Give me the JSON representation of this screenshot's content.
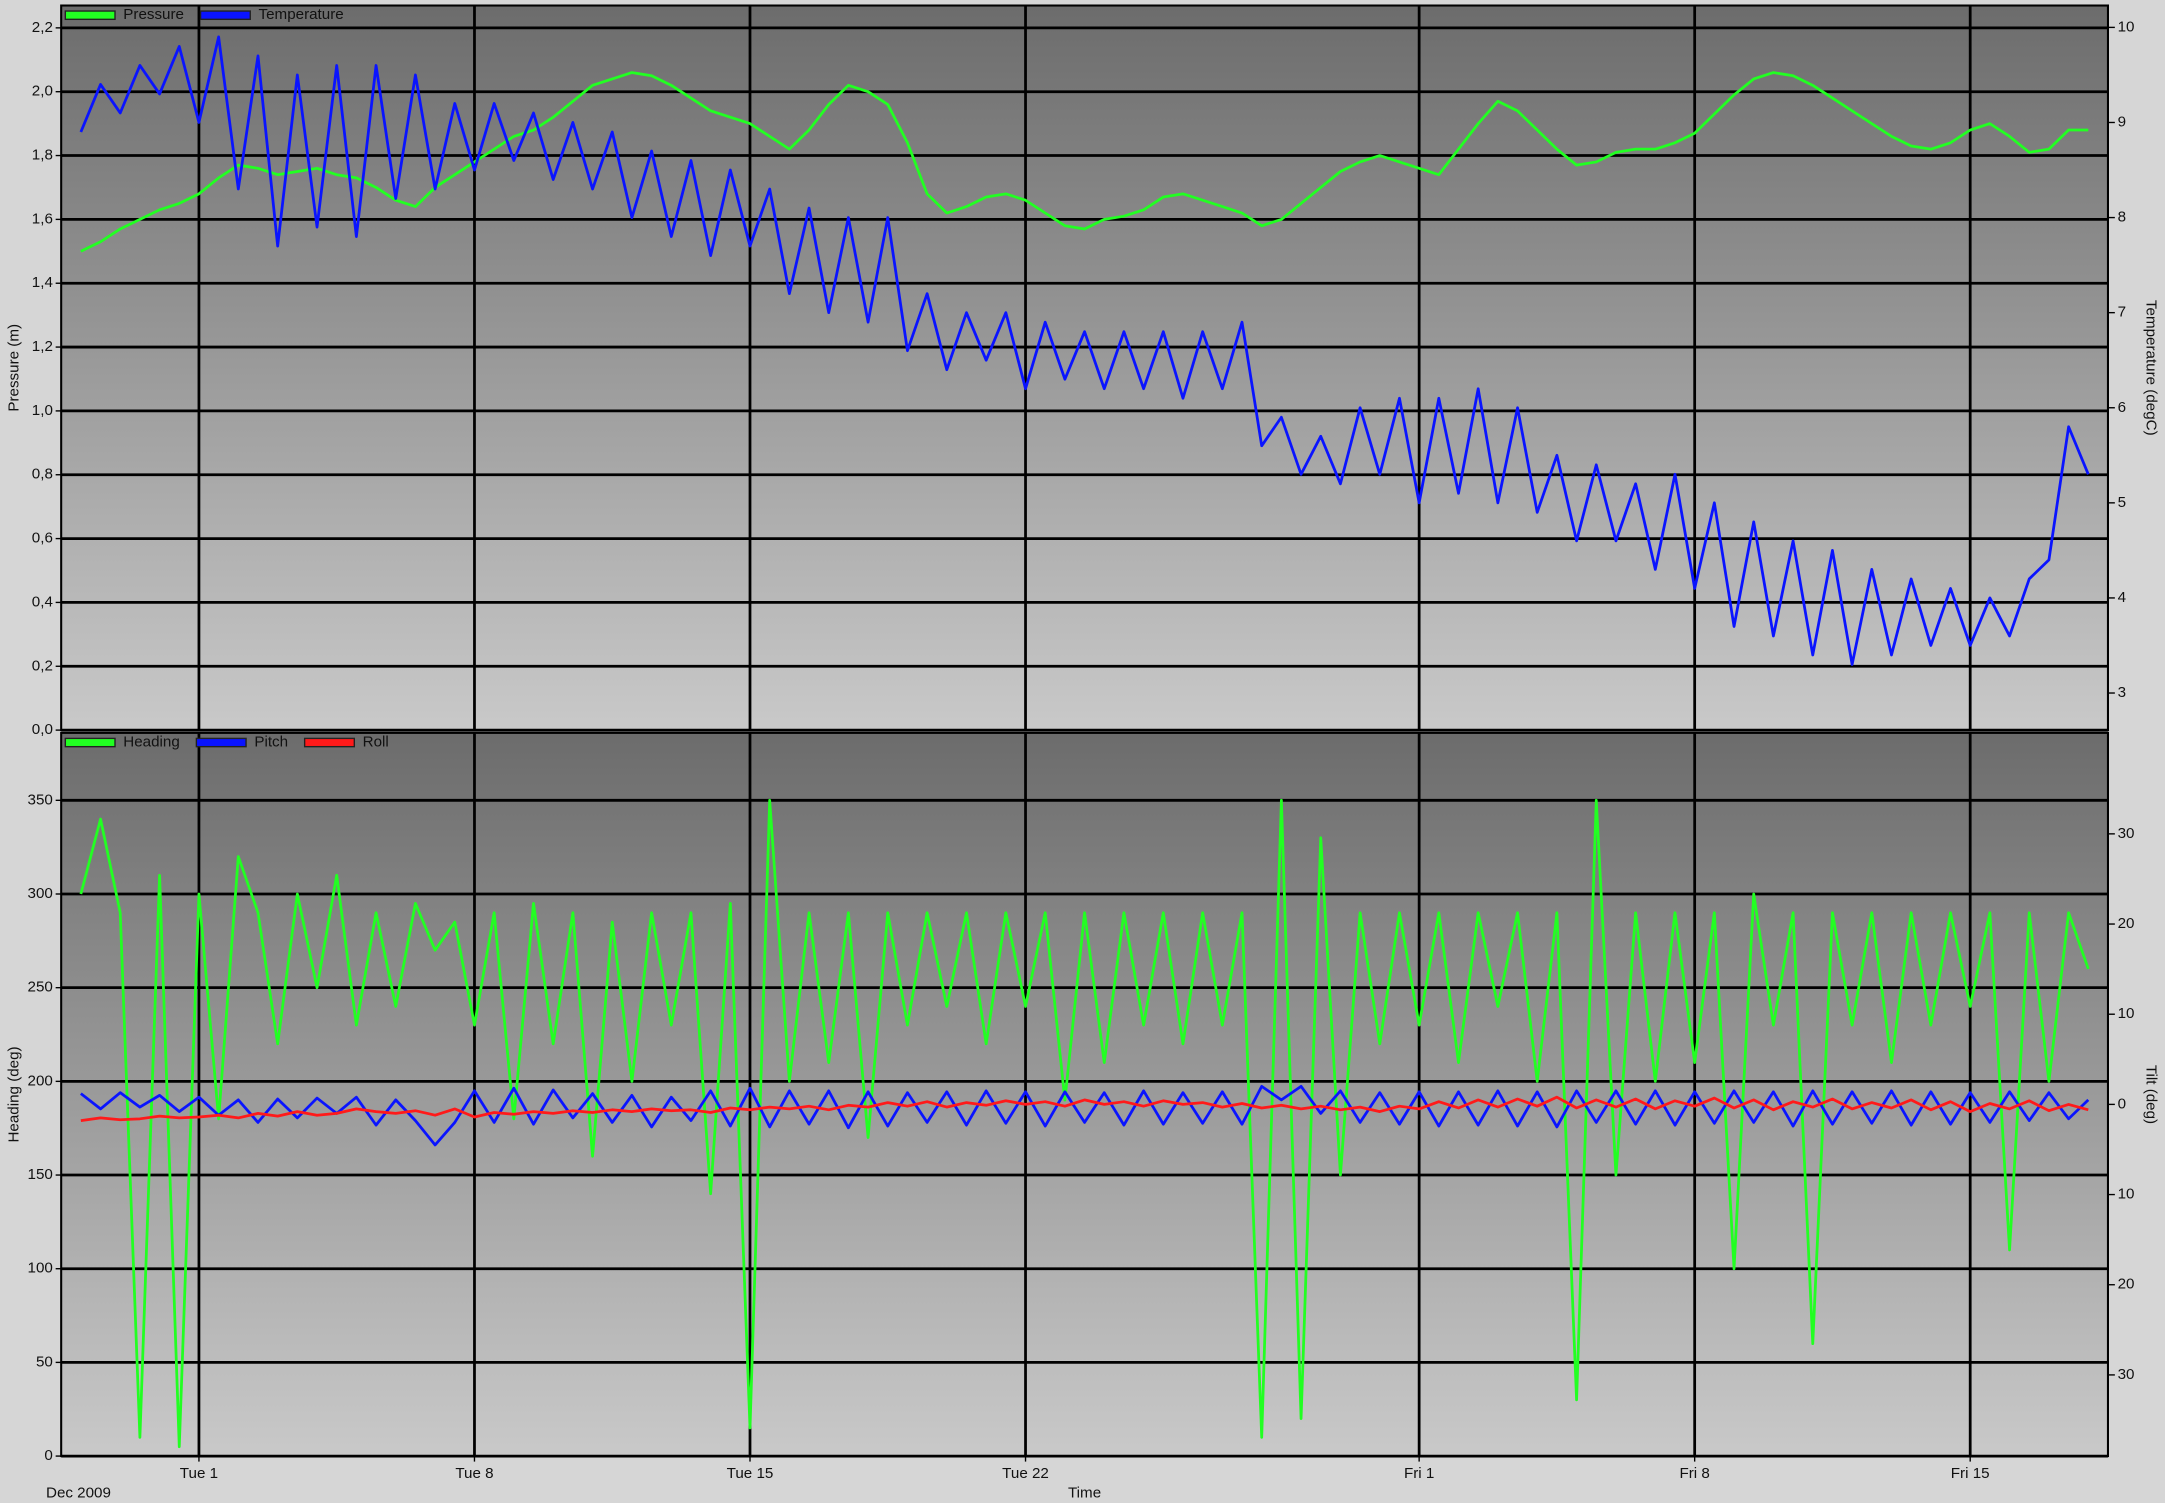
{
  "chart_data": [
    {
      "type": "line",
      "ylabel": "Pressure (m)",
      "y2label": "Temperature (degC)",
      "legend": "upper left",
      "grid": true,
      "xlim": [
        "2009-11-27T12:00",
        "2010-01-18T12:00"
      ],
      "ylim": [
        0,
        2.27
      ],
      "yticks": [
        {
          "value": 0,
          "label": "0,0"
        },
        {
          "value": 0.2,
          "label": "0,2"
        },
        {
          "value": 0.4,
          "label": "0,4"
        },
        {
          "value": 0.6,
          "label": "0,6"
        },
        {
          "value": 0.8,
          "label": "0,8"
        },
        {
          "value": 1.0,
          "label": "1,0"
        },
        {
          "value": 1.2,
          "label": "1,2"
        },
        {
          "value": 1.4,
          "label": "1,4"
        },
        {
          "value": 1.6,
          "label": "1,6"
        },
        {
          "value": 1.8,
          "label": "1,8"
        },
        {
          "value": 2.0,
          "label": "2,0"
        },
        {
          "value": 2.2,
          "label": "2,2"
        }
      ],
      "y2lim": [
        2.61,
        10.23
      ],
      "y2ticks": [
        3,
        4,
        5,
        6,
        7,
        8,
        9,
        10
      ],
      "x": [
        "2009-11-28T00:00",
        "2009-11-28T12:00",
        "2009-11-29T00:00",
        "2009-11-29T12:00",
        "2009-11-30T00:00",
        "2009-11-30T12:00",
        "2009-12-01T00:00",
        "2009-12-01T12:00",
        "2009-12-02T00:00",
        "2009-12-02T12:00",
        "2009-12-03T00:00",
        "2009-12-03T12:00",
        "2009-12-04T00:00",
        "2009-12-04T12:00",
        "2009-12-05T00:00",
        "2009-12-05T12:00",
        "2009-12-06T00:00",
        "2009-12-06T12:00",
        "2009-12-07T00:00",
        "2009-12-07T12:00",
        "2009-12-08T00:00",
        "2009-12-08T12:00",
        "2009-12-09T00:00",
        "2009-12-09T12:00",
        "2009-12-10T00:00",
        "2009-12-10T12:00",
        "2009-12-11T00:00",
        "2009-12-11T12:00",
        "2009-12-12T00:00",
        "2009-12-12T12:00",
        "2009-12-13T00:00",
        "2009-12-13T12:00",
        "2009-12-14T00:00",
        "2009-12-14T12:00",
        "2009-12-15T00:00",
        "2009-12-15T12:00",
        "2009-12-16T00:00",
        "2009-12-16T12:00",
        "2009-12-17T00:00",
        "2009-12-17T12:00",
        "2009-12-18T00:00",
        "2009-12-18T12:00",
        "2009-12-19T00:00",
        "2009-12-19T12:00",
        "2009-12-20T00:00",
        "2009-12-20T12:00",
        "2009-12-21T00:00",
        "2009-12-21T12:00",
        "2009-12-22T00:00",
        "2009-12-22T12:00",
        "2009-12-23T00:00",
        "2009-12-23T12:00",
        "2009-12-24T00:00",
        "2009-12-24T12:00",
        "2009-12-25T00:00",
        "2009-12-25T12:00",
        "2009-12-26T00:00",
        "2009-12-26T12:00",
        "2009-12-27T00:00",
        "2009-12-27T12:00",
        "2009-12-28T00:00",
        "2009-12-28T12:00",
        "2009-12-29T00:00",
        "2009-12-29T12:00",
        "2009-12-30T00:00",
        "2009-12-30T12:00",
        "2009-12-31T00:00",
        "2009-12-31T12:00",
        "2010-01-01T00:00",
        "2010-01-01T12:00",
        "2010-01-02T00:00",
        "2010-01-02T12:00",
        "2010-01-03T00:00",
        "2010-01-03T12:00",
        "2010-01-04T00:00",
        "2010-01-04T12:00",
        "2010-01-05T00:00",
        "2010-01-05T12:00",
        "2010-01-06T00:00",
        "2010-01-06T12:00",
        "2010-01-07T00:00",
        "2010-01-07T12:00",
        "2010-01-08T00:00",
        "2010-01-08T12:00",
        "2010-01-09T00:00",
        "2010-01-09T12:00",
        "2010-01-10T00:00",
        "2010-01-10T12:00",
        "2010-01-11T00:00",
        "2010-01-11T12:00",
        "2010-01-12T00:00",
        "2010-01-12T12:00",
        "2010-01-13T00:00",
        "2010-01-13T12:00",
        "2010-01-14T00:00",
        "2010-01-14T12:00",
        "2010-01-15T00:00",
        "2010-01-15T12:00",
        "2010-01-16T00:00",
        "2010-01-16T12:00",
        "2010-01-17T00:00",
        "2010-01-17T12:00",
        "2010-01-18T00:00"
      ],
      "series": [
        {
          "name": "Pressure",
          "color": "#22ff22",
          "axis": "y",
          "values": [
            1.5,
            1.53,
            1.57,
            1.6,
            1.63,
            1.65,
            1.68,
            1.73,
            1.77,
            1.76,
            1.74,
            1.75,
            1.76,
            1.74,
            1.73,
            1.7,
            1.66,
            1.64,
            1.7,
            1.74,
            1.78,
            1.82,
            1.86,
            1.88,
            1.92,
            1.97,
            2.02,
            2.04,
            2.06,
            2.05,
            2.02,
            1.98,
            1.94,
            1.92,
            1.9,
            1.86,
            1.82,
            1.88,
            1.96,
            2.02,
            2.0,
            1.96,
            1.84,
            1.68,
            1.62,
            1.64,
            1.67,
            1.68,
            1.66,
            1.62,
            1.58,
            1.57,
            1.6,
            1.61,
            1.63,
            1.67,
            1.68,
            1.66,
            1.64,
            1.62,
            1.58,
            1.6,
            1.65,
            1.7,
            1.75,
            1.78,
            1.8,
            1.78,
            1.76,
            1.74,
            1.82,
            1.9,
            1.97,
            1.94,
            1.88,
            1.82,
            1.77,
            1.78,
            1.81,
            1.82,
            1.82,
            1.84,
            1.87,
            1.93,
            1.99,
            2.04,
            2.06,
            2.05,
            2.02,
            1.98,
            1.94,
            1.9,
            1.86,
            1.83,
            1.82,
            1.84,
            1.88,
            1.9,
            1.86,
            1.81,
            1.82,
            1.88,
            1.88
          ]
        },
        {
          "name": "Temperature",
          "color": "#0a14ff",
          "axis": "y2",
          "values": [
            8.9,
            9.4,
            9.1,
            9.6,
            9.3,
            9.8,
            9.0,
            9.9,
            8.3,
            9.7,
            7.7,
            9.5,
            7.9,
            9.6,
            7.8,
            9.6,
            8.2,
            9.5,
            8.3,
            9.2,
            8.5,
            9.2,
            8.6,
            9.1,
            8.4,
            9.0,
            8.3,
            8.9,
            8.0,
            8.7,
            7.8,
            8.6,
            7.6,
            8.5,
            7.7,
            8.3,
            7.2,
            8.1,
            7.0,
            8.0,
            6.9,
            8.0,
            6.6,
            7.2,
            6.4,
            7.0,
            6.5,
            7.0,
            6.2,
            6.9,
            6.3,
            6.8,
            6.2,
            6.8,
            6.2,
            6.8,
            6.1,
            6.8,
            6.2,
            6.9,
            5.6,
            5.9,
            5.3,
            5.7,
            5.2,
            6.0,
            5.3,
            6.1,
            5.0,
            6.1,
            5.1,
            6.2,
            5.0,
            6.0,
            4.9,
            5.5,
            4.6,
            5.4,
            4.6,
            5.2,
            4.3,
            5.3,
            4.1,
            5.0,
            3.7,
            4.8,
            3.6,
            4.6,
            3.4,
            4.5,
            3.3,
            4.3,
            3.4,
            4.2,
            3.5,
            4.1,
            3.5,
            4.0,
            3.6,
            4.2,
            4.4,
            5.8,
            5.3
          ]
        }
      ]
    },
    {
      "type": "line",
      "ylabel": "Heading (deg)",
      "y2label": "Tilt (deg)",
      "xlabel": "Time",
      "date_caption": "Dec 2009",
      "legend": "upper left",
      "grid": true,
      "xlim": [
        "2009-11-27T12:00",
        "2010-01-18T12:00"
      ],
      "xticks": [
        {
          "value": "2009-12-01T00:00",
          "label": "Tue 1"
        },
        {
          "value": "2009-12-08T00:00",
          "label": "Tue 8"
        },
        {
          "value": "2009-12-15T00:00",
          "label": "Tue 15"
        },
        {
          "value": "2009-12-22T00:00",
          "label": "Tue 22"
        },
        {
          "value": "2010-01-01T00:00",
          "label": "Fri 1"
        },
        {
          "value": "2010-01-08T00:00",
          "label": "Fri 8"
        },
        {
          "value": "2010-01-15T00:00",
          "label": "Fri 15"
        }
      ],
      "ylim": [
        0,
        386
      ],
      "yticks": [
        0,
        50,
        100,
        150,
        200,
        250,
        300,
        350
      ],
      "y2lim": [
        -39,
        41.2
      ],
      "y2ticks": [
        30,
        20,
        10,
        0,
        {
          "value": -10,
          "label": "10"
        },
        {
          "value": -20,
          "label": "20"
        },
        {
          "value": -30,
          "label": "30"
        }
      ],
      "x": [
        "2009-11-28T00:00",
        "2009-11-28T12:00",
        "2009-11-29T00:00",
        "2009-11-29T12:00",
        "2009-11-30T00:00",
        "2009-11-30T12:00",
        "2009-12-01T00:00",
        "2009-12-01T12:00",
        "2009-12-02T00:00",
        "2009-12-02T12:00",
        "2009-12-03T00:00",
        "2009-12-03T12:00",
        "2009-12-04T00:00",
        "2009-12-04T12:00",
        "2009-12-05T00:00",
        "2009-12-05T12:00",
        "2009-12-06T00:00",
        "2009-12-06T12:00",
        "2009-12-07T00:00",
        "2009-12-07T12:00",
        "2009-12-08T00:00",
        "2009-12-08T12:00",
        "2009-12-09T00:00",
        "2009-12-09T12:00",
        "2009-12-10T00:00",
        "2009-12-10T12:00",
        "2009-12-11T00:00",
        "2009-12-11T12:00",
        "2009-12-12T00:00",
        "2009-12-12T12:00",
        "2009-12-13T00:00",
        "2009-12-13T12:00",
        "2009-12-14T00:00",
        "2009-12-14T12:00",
        "2009-12-15T00:00",
        "2009-12-15T12:00",
        "2009-12-16T00:00",
        "2009-12-16T12:00",
        "2009-12-17T00:00",
        "2009-12-17T12:00",
        "2009-12-18T00:00",
        "2009-12-18T12:00",
        "2009-12-19T00:00",
        "2009-12-19T12:00",
        "2009-12-20T00:00",
        "2009-12-20T12:00",
        "2009-12-21T00:00",
        "2009-12-21T12:00",
        "2009-12-22T00:00",
        "2009-12-22T12:00",
        "2009-12-23T00:00",
        "2009-12-23T12:00",
        "2009-12-24T00:00",
        "2009-12-24T12:00",
        "2009-12-25T00:00",
        "2009-12-25T12:00",
        "2009-12-26T00:00",
        "2009-12-26T12:00",
        "2009-12-27T00:00",
        "2009-12-27T12:00",
        "2009-12-28T00:00",
        "2009-12-28T12:00",
        "2009-12-29T00:00",
        "2009-12-29T12:00",
        "2009-12-30T00:00",
        "2009-12-30T12:00",
        "2009-12-31T00:00",
        "2009-12-31T12:00",
        "2010-01-01T00:00",
        "2010-01-01T12:00",
        "2010-01-02T00:00",
        "2010-01-02T12:00",
        "2010-01-03T00:00",
        "2010-01-03T12:00",
        "2010-01-04T00:00",
        "2010-01-04T12:00",
        "2010-01-05T00:00",
        "2010-01-05T12:00",
        "2010-01-06T00:00",
        "2010-01-06T12:00",
        "2010-01-07T00:00",
        "2010-01-07T12:00",
        "2010-01-08T00:00",
        "2010-01-08T12:00",
        "2010-01-09T00:00",
        "2010-01-09T12:00",
        "2010-01-10T00:00",
        "2010-01-10T12:00",
        "2010-01-11T00:00",
        "2010-01-11T12:00",
        "2010-01-12T00:00",
        "2010-01-12T12:00",
        "2010-01-13T00:00",
        "2010-01-13T12:00",
        "2010-01-14T00:00",
        "2010-01-14T12:00",
        "2010-01-15T00:00",
        "2010-01-15T12:00",
        "2010-01-16T00:00",
        "2010-01-16T12:00",
        "2010-01-17T00:00",
        "2010-01-17T12:00",
        "2010-01-18T00:00"
      ],
      "series": [
        {
          "name": "Heading",
          "color": "#22ff22",
          "axis": "y",
          "values": [
            300,
            340,
            290,
            10,
            310,
            5,
            300,
            180,
            320,
            290,
            220,
            300,
            250,
            310,
            230,
            290,
            240,
            295,
            270,
            285,
            230,
            290,
            180,
            295,
            220,
            290,
            160,
            285,
            200,
            290,
            230,
            290,
            140,
            295,
            15,
            350,
            200,
            290,
            210,
            290,
            170,
            290,
            230,
            290,
            240,
            290,
            220,
            290,
            240,
            290,
            190,
            290,
            210,
            290,
            230,
            290,
            220,
            290,
            230,
            290,
            10,
            350,
            20,
            330,
            150,
            290,
            220,
            290,
            230,
            290,
            210,
            290,
            240,
            290,
            200,
            290,
            30,
            350,
            150,
            290,
            200,
            290,
            210,
            290,
            100,
            300,
            230,
            290,
            60,
            290,
            230,
            290,
            210,
            290,
            230,
            290,
            240,
            290,
            110,
            290,
            200,
            290,
            260
          ]
        },
        {
          "name": "Pitch",
          "color": "#0a14ff",
          "axis": "y2",
          "values": [
            1.2,
            -0.5,
            1.3,
            -0.3,
            1.0,
            -0.8,
            0.8,
            -1.2,
            0.5,
            -2.0,
            0.6,
            -1.5,
            0.7,
            -1.0,
            0.8,
            -2.3,
            0.5,
            -1.8,
            -4.5,
            -2.0,
            1.5,
            -2.0,
            1.8,
            -2.2,
            1.6,
            -1.5,
            1.2,
            -2.0,
            1.0,
            -2.5,
            0.8,
            -1.8,
            1.5,
            -2.4,
            1.8,
            -2.5,
            1.5,
            -2.2,
            1.5,
            -2.6,
            1.4,
            -2.4,
            1.3,
            -2.0,
            1.4,
            -2.3,
            1.5,
            -2.1,
            1.4,
            -2.4,
            1.4,
            -2.0,
            1.3,
            -2.3,
            1.5,
            -2.2,
            1.3,
            -2.1,
            1.4,
            -2.2,
            2.0,
            0.5,
            2.0,
            -1.0,
            1.5,
            -2.0,
            1.3,
            -2.2,
            1.4,
            -2.4,
            1.4,
            -2.3,
            1.5,
            -2.4,
            1.4,
            -2.5,
            1.5,
            -2.0,
            1.5,
            -2.2,
            1.5,
            -2.3,
            1.4,
            -2.1,
            1.5,
            -2.0,
            1.4,
            -2.4,
            1.5,
            -2.2,
            1.4,
            -2.1,
            1.5,
            -2.3,
            1.4,
            -2.2,
            1.3,
            -2.0,
            1.4,
            -1.8,
            1.3,
            -1.6,
            0.5
          ]
        },
        {
          "name": "Roll",
          "color": "#ff1a1a",
          "axis": "y2",
          "values": [
            -1.8,
            -1.5,
            -1.7,
            -1.6,
            -1.3,
            -1.5,
            -1.4,
            -1.2,
            -1.5,
            -1.0,
            -1.3,
            -0.8,
            -1.2,
            -1.0,
            -0.5,
            -0.8,
            -1.0,
            -0.7,
            -1.2,
            -0.5,
            -1.4,
            -0.9,
            -1.1,
            -0.8,
            -1.0,
            -0.7,
            -0.9,
            -0.6,
            -0.8,
            -0.5,
            -0.7,
            -0.6,
            -0.9,
            -0.4,
            -0.6,
            -0.3,
            -0.5,
            -0.2,
            -0.6,
            -0.1,
            -0.3,
            0.2,
            -0.2,
            0.3,
            -0.3,
            0.2,
            -0.1,
            0.4,
            0.0,
            0.3,
            -0.2,
            0.5,
            0.0,
            0.3,
            -0.2,
            0.4,
            0.0,
            0.2,
            -0.3,
            0.1,
            -0.4,
            -0.1,
            -0.5,
            -0.2,
            -0.6,
            -0.3,
            -0.8,
            -0.2,
            -0.5,
            0.3,
            -0.4,
            0.5,
            -0.3,
            0.6,
            -0.2,
            0.8,
            -0.4,
            0.5,
            -0.3,
            0.6,
            -0.5,
            0.4,
            -0.2,
            0.7,
            -0.4,
            0.5,
            -0.6,
            0.3,
            -0.3,
            0.6,
            -0.5,
            0.2,
            -0.4,
            0.5,
            -0.6,
            0.3,
            -0.8,
            0.1,
            -0.5,
            0.4,
            -0.7,
            0.0,
            -0.6
          ]
        }
      ]
    }
  ]
}
